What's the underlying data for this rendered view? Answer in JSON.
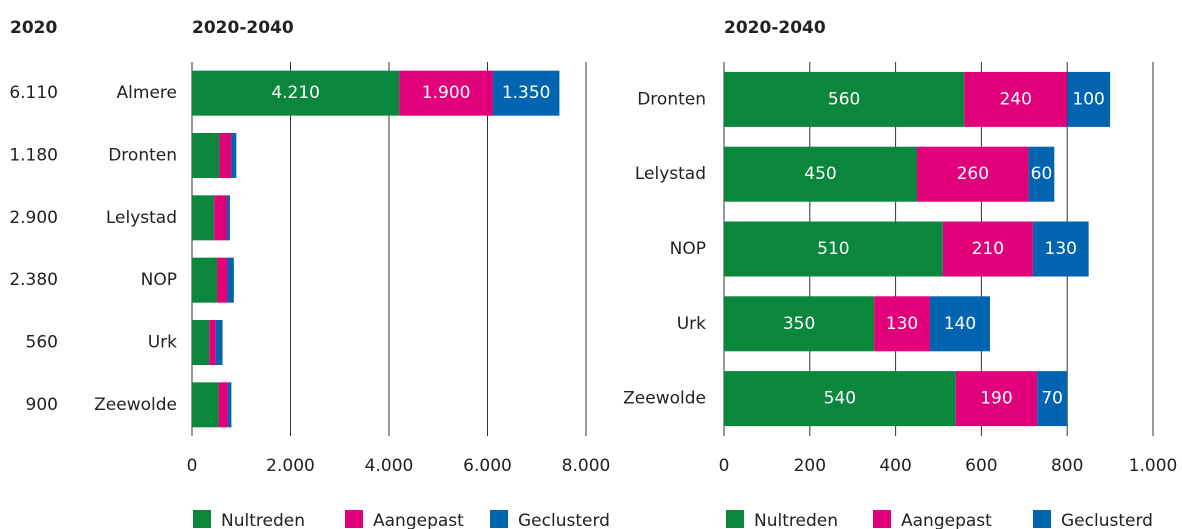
{
  "chart_data": [
    {
      "type": "stacked_barh",
      "title": "2020-2040",
      "column_title": "2020",
      "column_values": [
        "6.110",
        "1.180",
        "2.900",
        "2.380",
        "560",
        "900"
      ],
      "categories": [
        "Almere",
        "Dronten",
        "Lelystad",
        "NOP",
        "Urk",
        "Zeewolde"
      ],
      "series": [
        {
          "name": "Nultreden",
          "color": "#0a873c",
          "values": [
            4210,
            560,
            450,
            510,
            350,
            540
          ],
          "value_labels": [
            "4.210",
            null,
            null,
            null,
            null,
            null
          ]
        },
        {
          "name": "Aangepast",
          "color": "#e2007a",
          "values": [
            1900,
            240,
            260,
            210,
            130,
            190
          ],
          "value_labels": [
            "1.900",
            null,
            null,
            null,
            null,
            null
          ]
        },
        {
          "name": "Geclusterd",
          "color": "#0064b0",
          "values": [
            1350,
            100,
            60,
            130,
            140,
            70
          ],
          "value_labels": [
            "1.350",
            null,
            null,
            null,
            null,
            null
          ]
        }
      ],
      "xlim": [
        0,
        8000
      ],
      "xticks": [
        0,
        {
          "value": 2000,
          "label": "2.000"
        },
        {
          "value": 4000,
          "label": "4.000"
        },
        {
          "value": 6000,
          "label": "6.000"
        },
        {
          "value": 8000,
          "label": "8.000"
        }
      ],
      "grid": true
    },
    {
      "type": "stacked_barh",
      "title": "2020-2040",
      "categories": [
        "Dronten",
        "Lelystad",
        "NOP",
        "Urk",
        "Zeewolde"
      ],
      "series": [
        {
          "name": "Nultreden",
          "color": "#0a873c",
          "values": [
            560,
            450,
            510,
            350,
            540
          ]
        },
        {
          "name": "Aangepast",
          "color": "#e2007a",
          "values": [
            240,
            260,
            210,
            130,
            190
          ]
        },
        {
          "name": "Geclusterd",
          "color": "#0064b0",
          "values": [
            100,
            60,
            130,
            140,
            70
          ]
        }
      ],
      "xlim": [
        0,
        1000
      ],
      "xticks": [
        0,
        200,
        400,
        600,
        800,
        {
          "value": 1000,
          "label": "1.000"
        }
      ],
      "grid": true,
      "data_labels": true
    }
  ]
}
